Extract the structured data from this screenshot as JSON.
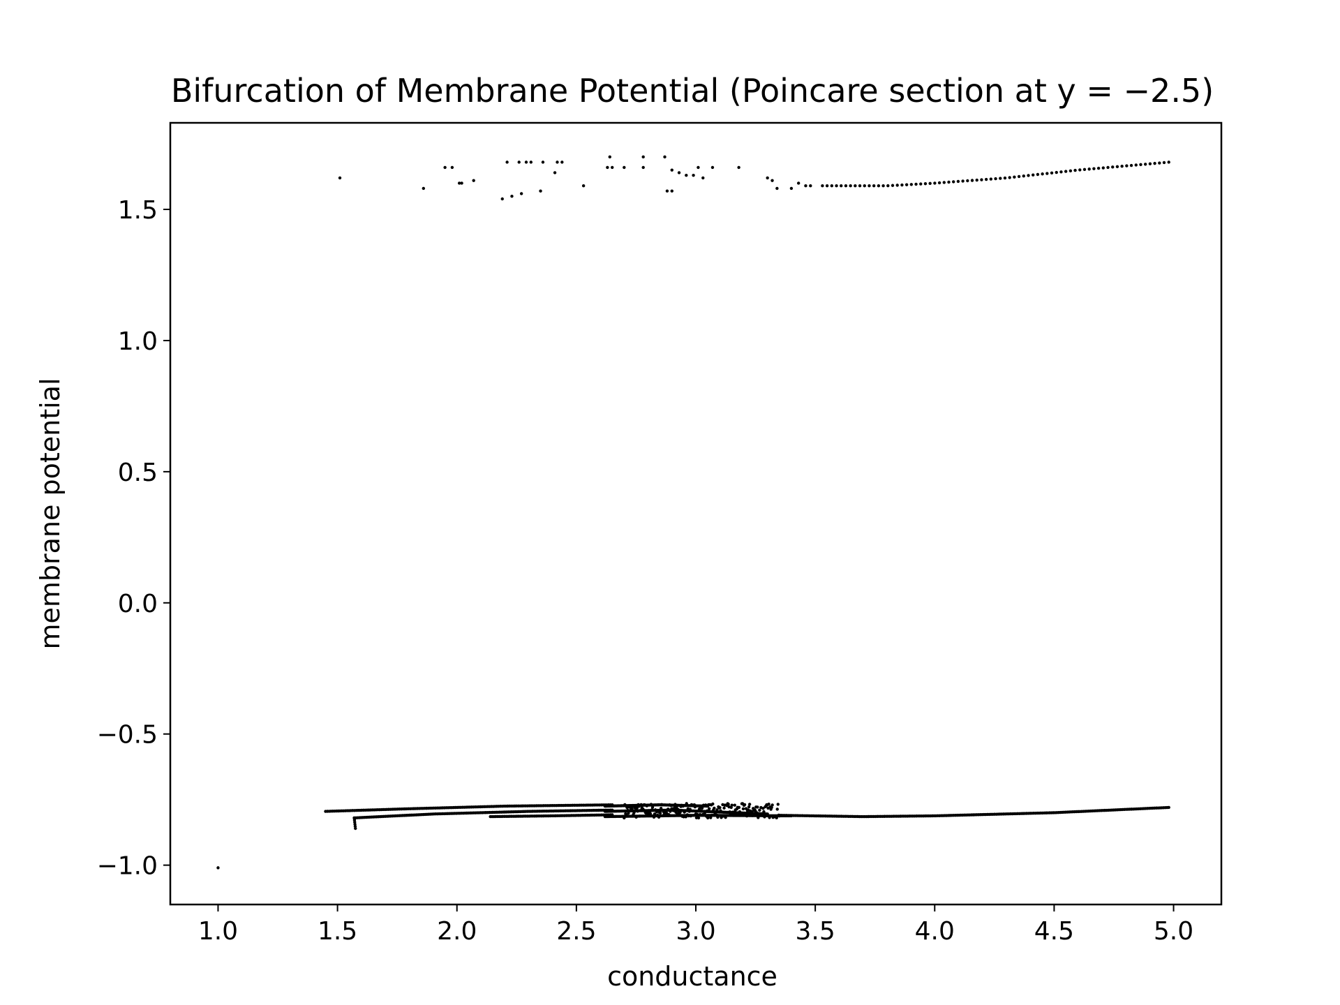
{
  "chart_data": {
    "type": "scatter",
    "title": "Bifurcation of Membrane Potential (Poincare section at y = −2.5)",
    "xlabel": "conductance",
    "ylabel": "membrane potential",
    "xlim": [
      0.8,
      5.2
    ],
    "ylim": [
      -1.15,
      1.83
    ],
    "xticks": [
      1.0,
      1.5,
      2.0,
      2.5,
      3.0,
      3.5,
      4.0,
      4.5,
      5.0
    ],
    "xtick_labels": [
      "1.0",
      "1.5",
      "2.0",
      "2.5",
      "3.0",
      "3.5",
      "4.0",
      "4.5",
      "5.0"
    ],
    "yticks": [
      -1.0,
      -0.5,
      0.0,
      0.5,
      1.0,
      1.5
    ],
    "ytick_labels": [
      "−1.0",
      "−0.5",
      "0.0",
      "0.5",
      "1.0",
      "1.5"
    ],
    "grid": false,
    "marker_color": "#000000",
    "isolated_points": [
      [
        1.0,
        -1.01
      ],
      [
        1.51,
        1.62
      ],
      [
        1.86,
        1.58
      ],
      [
        1.95,
        1.66
      ],
      [
        1.98,
        1.66
      ],
      [
        2.01,
        1.6
      ],
      [
        2.02,
        1.6
      ],
      [
        2.07,
        1.61
      ],
      [
        2.19,
        1.54
      ],
      [
        2.21,
        1.68
      ],
      [
        2.23,
        1.55
      ],
      [
        2.26,
        1.68
      ],
      [
        2.27,
        1.56
      ],
      [
        2.29,
        1.68
      ],
      [
        2.31,
        1.68
      ],
      [
        2.35,
        1.57
      ],
      [
        2.36,
        1.68
      ],
      [
        2.41,
        1.64
      ],
      [
        2.42,
        1.68
      ],
      [
        2.44,
        1.68
      ],
      [
        2.53,
        1.59
      ],
      [
        2.63,
        1.66
      ],
      [
        2.64,
        1.7
      ],
      [
        2.65,
        1.66
      ],
      [
        2.7,
        1.66
      ],
      [
        2.78,
        1.7
      ],
      [
        2.78,
        1.66
      ],
      [
        2.87,
        1.7
      ],
      [
        2.88,
        1.57
      ],
      [
        2.9,
        1.57
      ],
      [
        2.9,
        1.65
      ],
      [
        2.93,
        1.64
      ],
      [
        2.96,
        1.63
      ],
      [
        2.99,
        1.63
      ],
      [
        3.01,
        1.66
      ],
      [
        3.03,
        1.62
      ],
      [
        3.07,
        1.66
      ],
      [
        3.18,
        1.66
      ],
      [
        3.3,
        1.62
      ],
      [
        3.32,
        1.61
      ],
      [
        3.34,
        1.58
      ],
      [
        3.4,
        1.58
      ],
      [
        3.43,
        1.6
      ],
      [
        3.46,
        1.59
      ],
      [
        3.48,
        1.59
      ]
    ],
    "branches": [
      {
        "name": "upper",
        "x_start": 3.53,
        "x_end": 4.98,
        "count": 75,
        "y_points": [
          [
            3.53,
            1.59
          ],
          [
            3.8,
            1.59
          ],
          [
            4.0,
            1.6
          ],
          [
            4.3,
            1.62
          ],
          [
            4.6,
            1.65
          ],
          [
            4.98,
            1.68
          ]
        ]
      },
      {
        "name": "lower-a",
        "x_start": 1.45,
        "x_end": 2.65,
        "count": 160,
        "y_points": [
          [
            1.45,
            -0.795
          ],
          [
            1.8,
            -0.785
          ],
          [
            2.2,
            -0.775
          ],
          [
            2.65,
            -0.77
          ]
        ]
      },
      {
        "name": "lower-b",
        "x_start": 1.57,
        "x_end": 2.65,
        "count": 150,
        "y_points": [
          [
            1.57,
            -0.82
          ],
          [
            1.9,
            -0.805
          ],
          [
            2.3,
            -0.795
          ],
          [
            2.65,
            -0.79
          ]
        ]
      },
      {
        "name": "lower-c",
        "x_start": 2.14,
        "x_end": 2.65,
        "count": 70,
        "y_points": [
          [
            2.14,
            -0.815
          ],
          [
            2.4,
            -0.812
          ],
          [
            2.65,
            -0.808
          ]
        ]
      },
      {
        "name": "lower-spike",
        "x_start": 1.57,
        "x_end": 1.575,
        "count": 6,
        "y_points": [
          [
            1.57,
            -0.82
          ],
          [
            1.575,
            -0.86
          ]
        ]
      },
      {
        "name": "lower-d",
        "x_start": 2.62,
        "x_end": 3.05,
        "count": 90,
        "y_points": [
          [
            2.62,
            -0.775
          ],
          [
            2.85,
            -0.77
          ],
          [
            3.05,
            -0.775
          ]
        ]
      },
      {
        "name": "lower-e",
        "x_start": 2.62,
        "x_end": 3.3,
        "count": 120,
        "y_points": [
          [
            2.62,
            -0.795
          ],
          [
            2.9,
            -0.79
          ],
          [
            3.3,
            -0.805
          ]
        ]
      },
      {
        "name": "lower-f",
        "x_start": 2.62,
        "x_end": 3.4,
        "count": 130,
        "y_points": [
          [
            2.62,
            -0.815
          ],
          [
            3.0,
            -0.81
          ],
          [
            3.4,
            -0.812
          ]
        ]
      },
      {
        "name": "lower-merged",
        "x_start": 3.35,
        "x_end": 4.98,
        "count": 220,
        "y_points": [
          [
            3.35,
            -0.81
          ],
          [
            3.7,
            -0.815
          ],
          [
            4.0,
            -0.812
          ],
          [
            4.5,
            -0.8
          ],
          [
            4.98,
            -0.78
          ]
        ]
      },
      {
        "name": "lower-chaotic",
        "x_start": 2.7,
        "x_end": 3.35,
        "count": 220,
        "scatter": true,
        "y_range": [
          -0.82,
          -0.765
        ]
      }
    ]
  }
}
